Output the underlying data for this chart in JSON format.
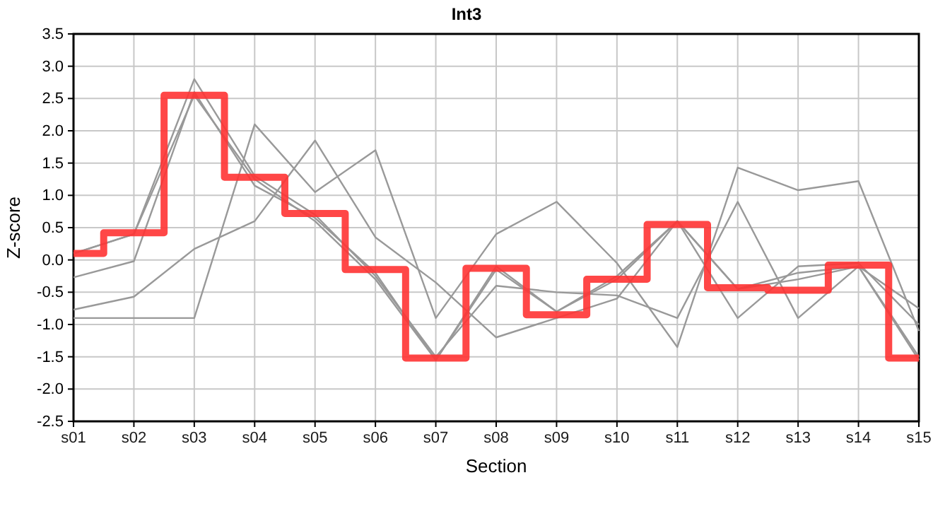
{
  "chart_data": {
    "type": "line",
    "title": "Int3",
    "xlabel": "Section",
    "ylabel": "Z-score",
    "categories": [
      "s01",
      "s02",
      "s03",
      "s04",
      "s05",
      "s06",
      "s07",
      "s08",
      "s09",
      "s10",
      "s11",
      "s12",
      "s13",
      "s14",
      "s15"
    ],
    "ylim": [
      -2.5,
      3.5
    ],
    "yticks": [
      {
        "value": -2.5,
        "label": "-2.5"
      },
      {
        "value": -2,
        "label": "-2.0"
      },
      {
        "value": -1.5,
        "label": "-1.5"
      },
      {
        "value": -1,
        "label": "-1.0"
      },
      {
        "value": -0.5,
        "label": "-0.5"
      },
      {
        "value": 0,
        "label": "0.0"
      },
      {
        "value": 0.5,
        "label": "0.5"
      },
      {
        "value": 1,
        "label": "1.0"
      },
      {
        "value": 1.5,
        "label": "1.5"
      },
      {
        "value": 2,
        "label": "2.0"
      },
      {
        "value": 2.5,
        "label": "2.5"
      },
      {
        "value": 3,
        "label": "3.0"
      },
      {
        "value": 3.5,
        "label": "3.5"
      }
    ],
    "grid": true,
    "marker": "none",
    "line_style": "solid",
    "series": [
      {
        "color": "#999999",
        "values": [
          0.1,
          0.4,
          2.55,
          1.25,
          0.6,
          -0.3,
          -1.55,
          -0.1,
          -0.8,
          -0.3,
          0.6,
          -0.45,
          -0.2,
          -0.1,
          -1.5
        ]
      },
      {
        "color": "#999999",
        "values": [
          -0.27,
          -0.02,
          2.6,
          1.15,
          0.65,
          -0.2,
          -1.55,
          -0.15,
          -0.8,
          -0.25,
          0.6,
          -0.45,
          -0.3,
          -0.1,
          -1.55
        ]
      },
      {
        "color": "#999999",
        "values": [
          -0.9,
          -0.9,
          -0.9,
          2.1,
          1.05,
          1.7,
          -0.9,
          0.4,
          0.9,
          -0.05,
          -1.35,
          1.43,
          1.08,
          1.22,
          -1.1
        ]
      },
      {
        "color": "#999999",
        "values": [
          -0.77,
          -0.57,
          0.17,
          0.6,
          1.85,
          0.35,
          -0.35,
          -1.2,
          -0.9,
          -0.6,
          0.6,
          -0.9,
          -0.1,
          -0.05,
          -1.0
        ]
      },
      {
        "color": "#999999",
        "values": [
          0.1,
          0.4,
          2.8,
          1.3,
          0.7,
          -0.25,
          -1.5,
          -0.4,
          -0.5,
          -0.55,
          -0.9,
          0.9,
          -0.9,
          -0.1,
          -0.75
        ]
      },
      {
        "type": "step",
        "color": "#ff3333",
        "values": [
          0.1,
          0.42,
          2.55,
          1.28,
          0.72,
          -0.15,
          -1.52,
          -0.13,
          -0.85,
          -0.3,
          0.55,
          -0.43,
          -0.47,
          -0.08,
          -1.52
        ]
      }
    ]
  }
}
